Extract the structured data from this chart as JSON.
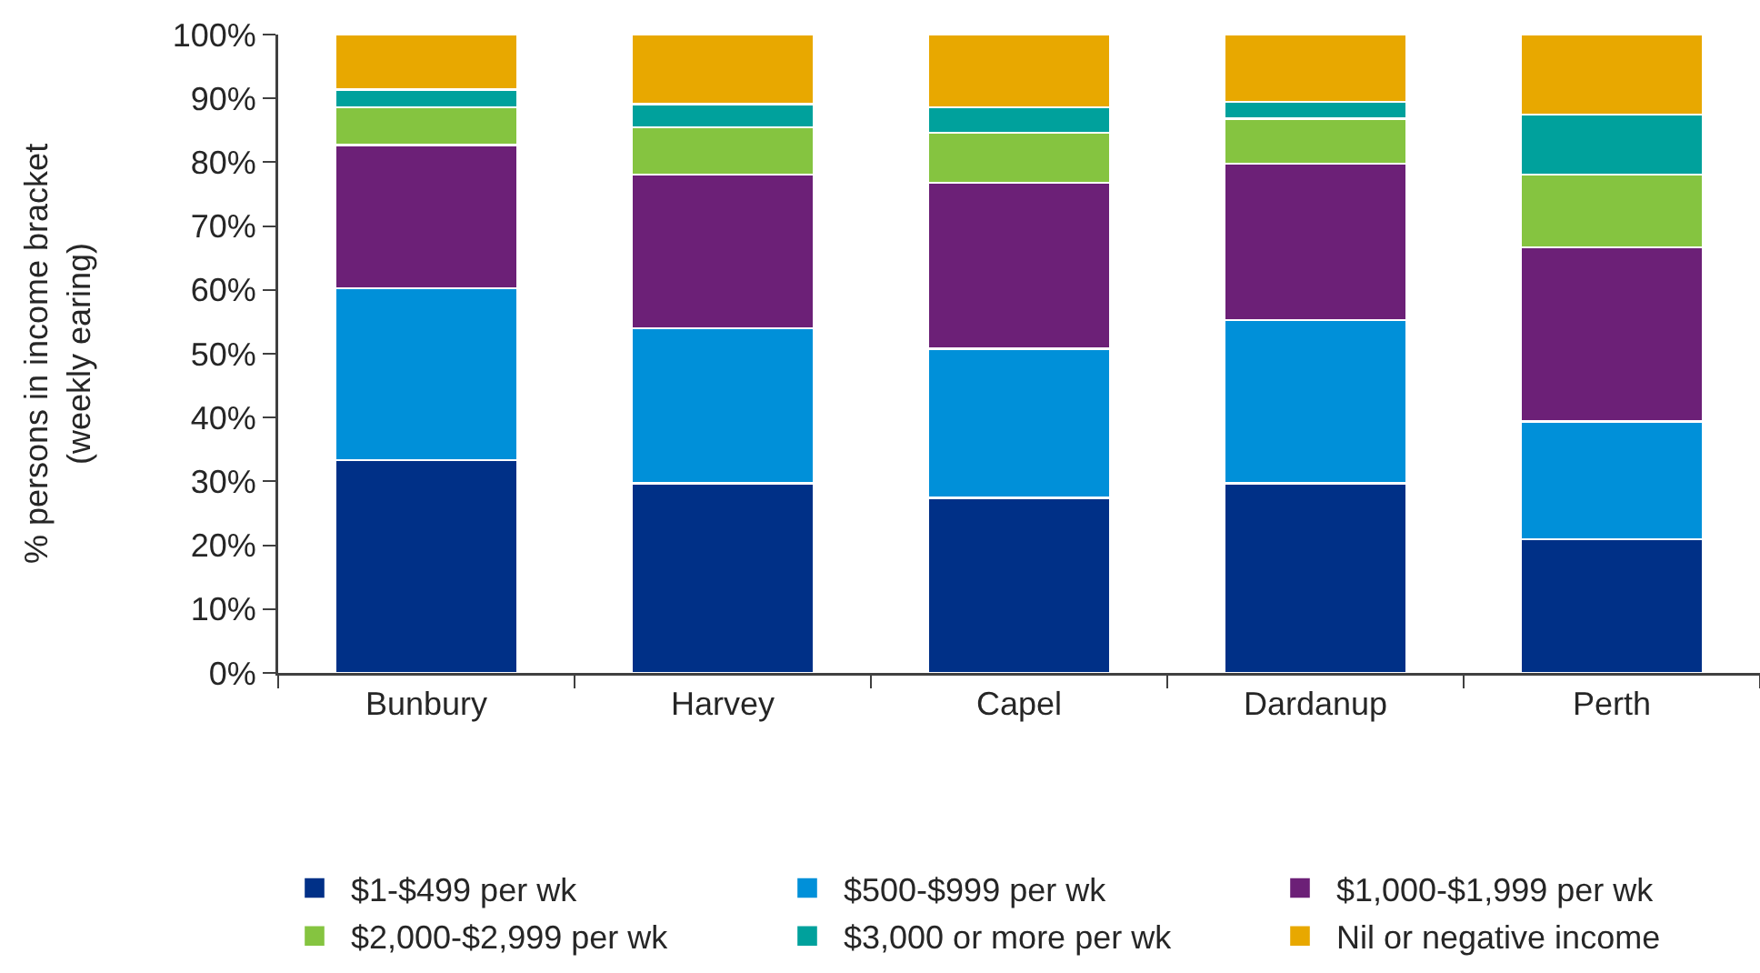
{
  "chart_data": {
    "type": "bar",
    "ylabel": "% persons in income bracket\n(weekly earing)",
    "categories": [
      "Bunbury",
      "Harvey",
      "Capel",
      "Dardanup",
      "Perth"
    ],
    "stacked": true,
    "ylim": [
      0,
      100
    ],
    "yticks": [
      {
        "value": 0,
        "label": "0%"
      },
      {
        "value": 10,
        "label": "10%"
      },
      {
        "value": 20,
        "label": "20%"
      },
      {
        "value": 30,
        "label": "30%"
      },
      {
        "value": 40,
        "label": "40%"
      },
      {
        "value": 50,
        "label": "50%"
      },
      {
        "value": 60,
        "label": "60%"
      },
      {
        "value": 70,
        "label": "70%"
      },
      {
        "value": 80,
        "label": "80%"
      },
      {
        "value": 90,
        "label": "90%"
      },
      {
        "value": 100,
        "label": "100%"
      }
    ],
    "legend": "bottom",
    "series": [
      {
        "name": "$1-$499 per wk",
        "color": "#003087",
        "values": [
          33.3,
          29.7,
          27.4,
          29.7,
          20.9
        ]
      },
      {
        "name": "$500-$999 per wk",
        "color": "#0090d9",
        "values": [
          27.0,
          24.3,
          23.4,
          25.6,
          18.5
        ]
      },
      {
        "name": "$1,000-$1,999 per wk",
        "color": "#6c2077",
        "values": [
          22.4,
          24.1,
          26.0,
          24.5,
          27.3
        ]
      },
      {
        "name": "$2,000-$2,999 per wk",
        "color": "#85c440",
        "values": [
          5.9,
          7.4,
          7.8,
          7.0,
          11.4
        ]
      },
      {
        "name": "$3,000 or more per wk",
        "color": "#00a19c",
        "values": [
          2.8,
          3.6,
          4.0,
          2.7,
          9.4
        ]
      },
      {
        "name": "Nil or negative income",
        "color": "#e8a800",
        "values": [
          8.6,
          10.9,
          11.4,
          10.5,
          12.5
        ]
      }
    ]
  }
}
